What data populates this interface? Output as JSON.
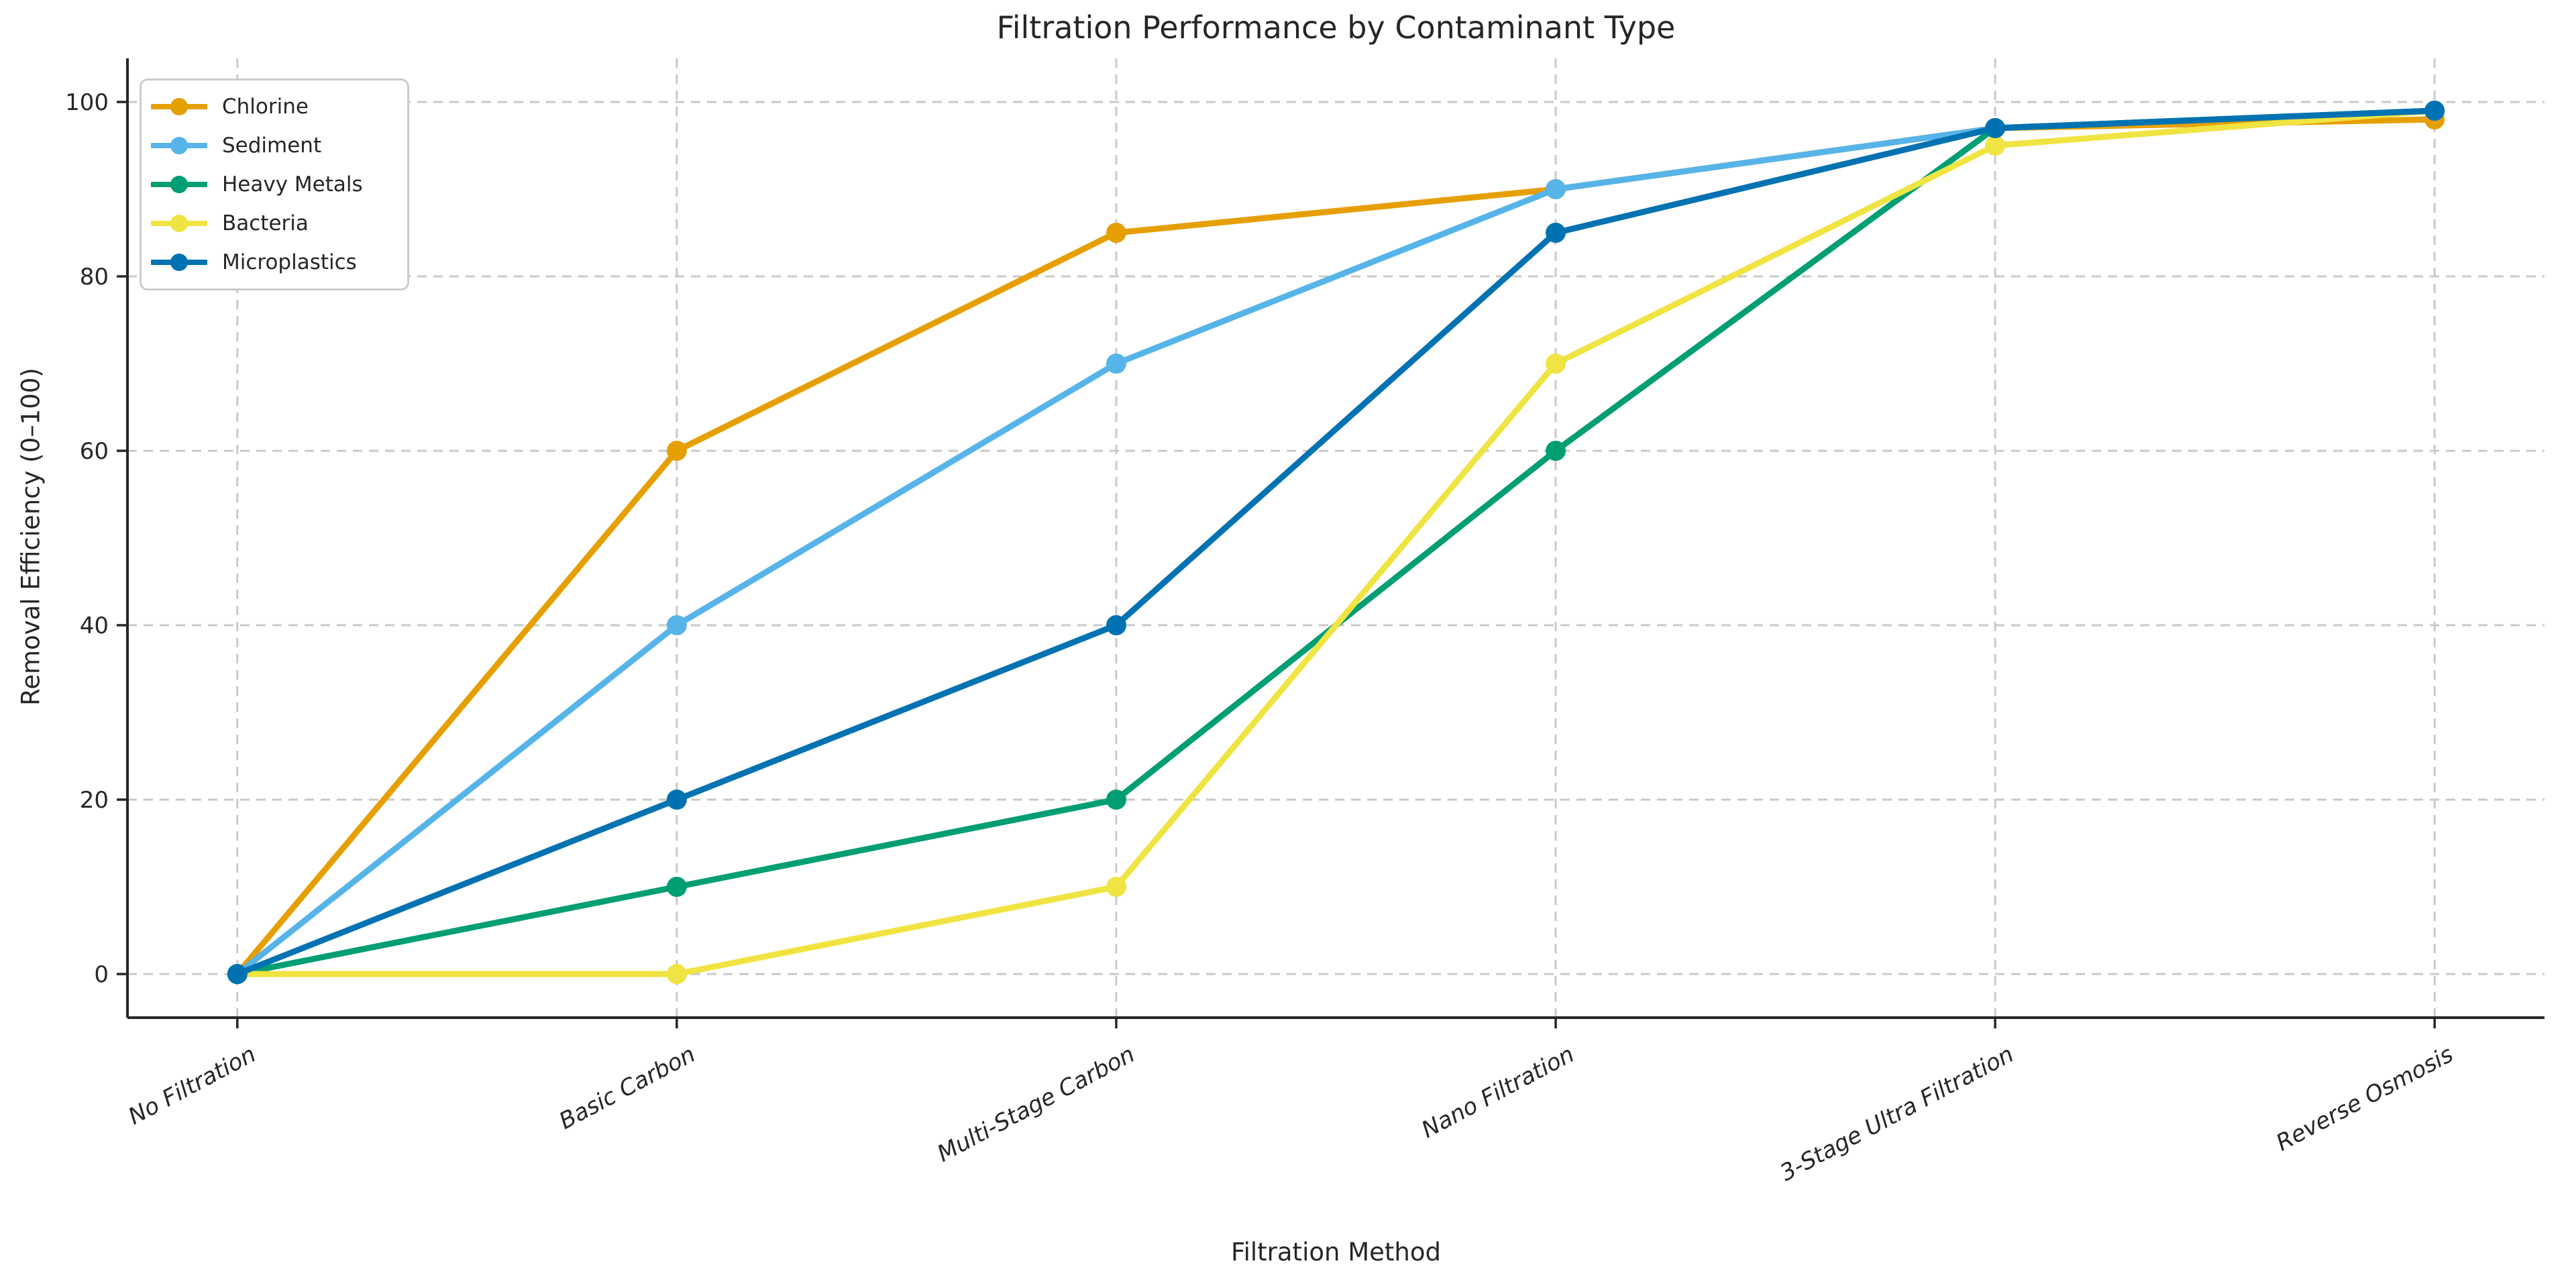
{
  "chart_data": {
    "type": "line",
    "title": "Filtration Performance by Contaminant Type",
    "xlabel": "Filtration Method",
    "ylabel": "Removal Efficiency (0–100)",
    "categories": [
      "No Filtration",
      "Basic Carbon",
      "Multi-Stage Carbon",
      "Nano Filtration",
      "3-Stage Ultra Filtration",
      "Reverse Osmosis"
    ],
    "yticks": [
      0,
      20,
      40,
      60,
      80,
      100
    ],
    "ylim": [
      -5,
      105
    ],
    "grid": "dashed-both-axes",
    "legend_position": "upper-left",
    "marker": "circle",
    "series": [
      {
        "name": "Chlorine",
        "color": "#E69F00",
        "values": [
          0,
          60,
          85,
          90,
          97,
          98
        ]
      },
      {
        "name": "Sediment",
        "color": "#56B4E9",
        "values": [
          0,
          40,
          70,
          90,
          97,
          99
        ]
      },
      {
        "name": "Heavy Metals",
        "color": "#009E73",
        "values": [
          0,
          10,
          20,
          60,
          97,
          99
        ]
      },
      {
        "name": "Bacteria",
        "color": "#F0E442",
        "values": [
          0,
          0,
          10,
          70,
          95,
          99
        ]
      },
      {
        "name": "Microplastics",
        "color": "#0072B2",
        "values": [
          0,
          20,
          40,
          85,
          97,
          99
        ]
      }
    ]
  },
  "colors": {
    "background": "#ffffff",
    "text": "#262626",
    "axis": "#262626",
    "grid": "#c9c9c9",
    "legend_border": "#cccccc"
  }
}
